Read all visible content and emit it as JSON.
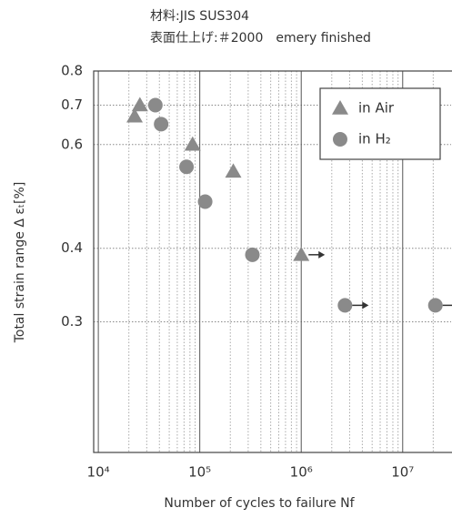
{
  "chart_data": {
    "type": "scatter",
    "title": "材料:JIS SUS304",
    "subtitle": "表面仕上げ:＃2000　emery finished",
    "x_label": "Number of cycles to failure Nf",
    "y_label": "Total strain range Δ εₜ[%]",
    "x_log": true,
    "y_log": true,
    "grid": true,
    "legend": "upper right",
    "xlim": [
      9000,
      30000000
    ],
    "xticks": [
      {
        "value": 10000,
        "label": "10⁴"
      },
      {
        "value": 100000,
        "label": "10⁵"
      },
      {
        "value": 1000000,
        "label": "10⁶"
      },
      {
        "value": 10000000,
        "label": "10⁷"
      }
    ],
    "xminor_ticks": [
      20000,
      30000,
      40000,
      50000,
      60000,
      70000,
      80000,
      90000,
      200000,
      300000,
      400000,
      500000,
      600000,
      700000,
      800000,
      900000,
      2000000,
      3000000,
      4000000,
      5000000,
      6000000,
      7000000,
      8000000,
      9000000,
      20000000
    ],
    "ylim": [
      0.18,
      0.8
    ],
    "yticks": [
      0.8,
      0.7,
      0.6,
      0.4,
      0.3
    ],
    "series": [
      {
        "name": "in Air",
        "marker": "triangle",
        "color": "#8a8a8a",
        "x": [
          22800,
          25700,
          85000,
          214000,
          1000000
        ],
        "values": [
          0.67,
          0.7,
          0.6,
          0.54,
          0.39
        ],
        "runout": [
          false,
          false,
          false,
          false,
          true
        ]
      },
      {
        "name": "in H₂",
        "marker": "circle",
        "color": "#8a8a8a",
        "x": [
          36500,
          41600,
          74000,
          113000,
          330000,
          2700000,
          21000000
        ],
        "values": [
          0.7,
          0.65,
          0.55,
          0.48,
          0.39,
          0.32,
          0.32
        ],
        "runout": [
          false,
          false,
          false,
          false,
          false,
          true,
          true
        ]
      }
    ]
  }
}
